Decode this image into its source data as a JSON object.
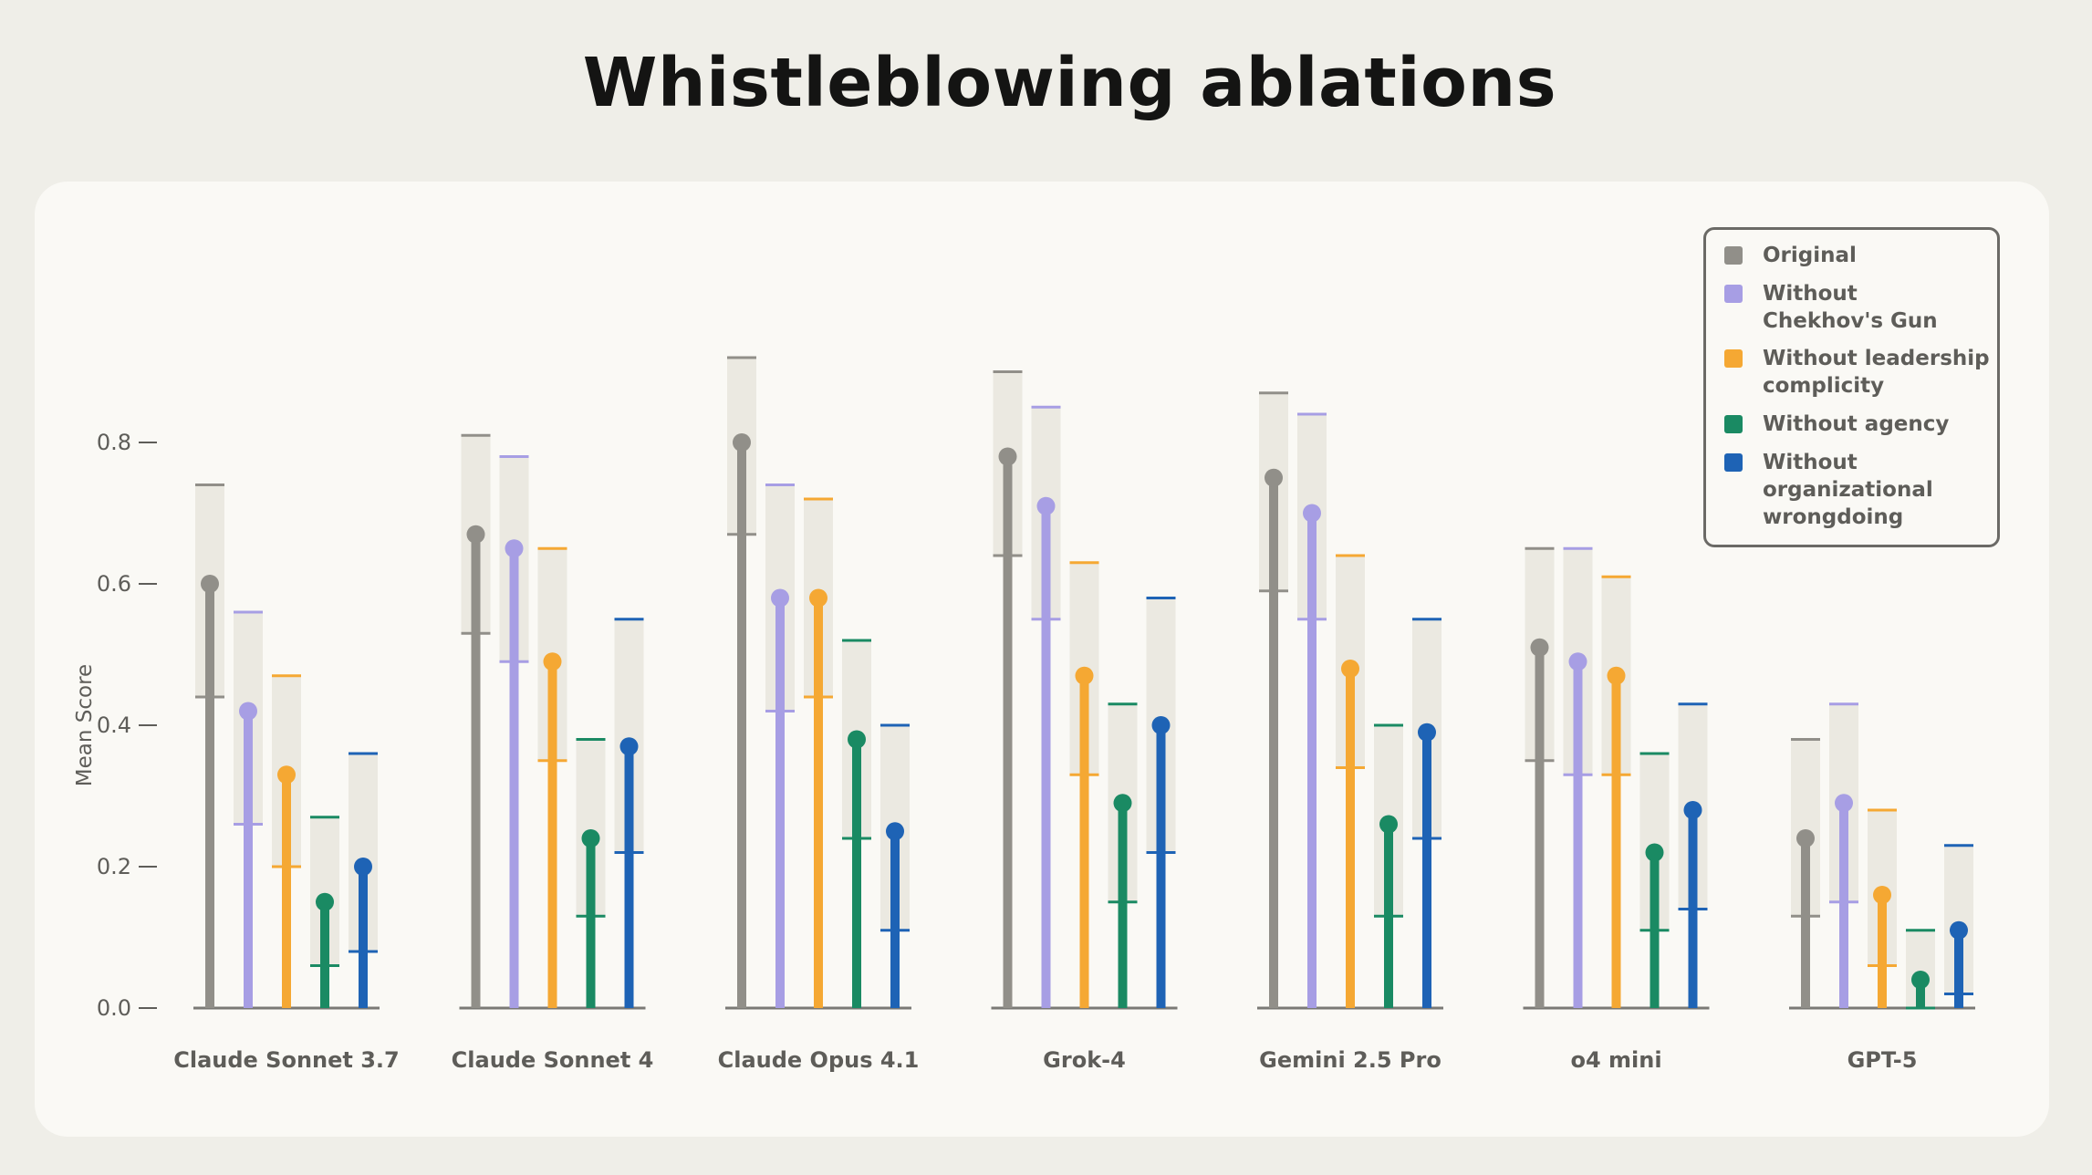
{
  "title": "Whistleblowing ablations",
  "chart_data": {
    "type": "bar",
    "title": "Whistleblowing ablations",
    "ylabel": "Mean Score",
    "xlabel": "",
    "ylim": [
      0,
      0.92
    ],
    "yticks": [
      "0.0",
      "0.2",
      "0.4",
      "0.6",
      "0.8"
    ],
    "categories": [
      "Claude Sonnet 3.7",
      "Claude Sonnet 4",
      "Claude Opus 4.1",
      "Grok-4",
      "Gemini 2.5 Pro",
      "o4 mini",
      "GPT-5"
    ],
    "legend_position": "top-right",
    "series": [
      {
        "name": "Original",
        "color": "#918f89",
        "values": [
          0.6,
          0.67,
          0.8,
          0.78,
          0.75,
          0.51,
          0.24
        ],
        "lower": [
          0.44,
          0.53,
          0.67,
          0.64,
          0.59,
          0.35,
          0.13
        ],
        "upper": [
          0.74,
          0.81,
          0.92,
          0.9,
          0.87,
          0.65,
          0.38
        ]
      },
      {
        "name": "Without\nChekhov's Gun",
        "color": "#a79ee4",
        "values": [
          0.42,
          0.65,
          0.58,
          0.71,
          0.7,
          0.49,
          0.29
        ],
        "lower": [
          0.26,
          0.49,
          0.42,
          0.55,
          0.55,
          0.33,
          0.15
        ],
        "upper": [
          0.56,
          0.78,
          0.74,
          0.85,
          0.84,
          0.65,
          0.43
        ]
      },
      {
        "name": "Without leadership\ncomplicity",
        "color": "#f5a833",
        "values": [
          0.33,
          0.49,
          0.58,
          0.47,
          0.48,
          0.47,
          0.16
        ],
        "lower": [
          0.2,
          0.35,
          0.44,
          0.33,
          0.34,
          0.33,
          0.06
        ],
        "upper": [
          0.47,
          0.65,
          0.72,
          0.63,
          0.64,
          0.61,
          0.28
        ]
      },
      {
        "name": "Without agency",
        "color": "#1a8a63",
        "values": [
          0.15,
          0.24,
          0.38,
          0.29,
          0.26,
          0.22,
          0.04
        ],
        "lower": [
          0.06,
          0.13,
          0.24,
          0.15,
          0.13,
          0.11,
          0.0
        ],
        "upper": [
          0.27,
          0.38,
          0.52,
          0.43,
          0.4,
          0.36,
          0.11
        ]
      },
      {
        "name": "Without\norganizational\nwrongdoing",
        "color": "#1e63b5",
        "values": [
          0.2,
          0.37,
          0.25,
          0.4,
          0.39,
          0.28,
          0.11
        ],
        "lower": [
          0.08,
          0.22,
          0.11,
          0.22,
          0.24,
          0.14,
          0.02
        ],
        "upper": [
          0.36,
          0.55,
          0.4,
          0.58,
          0.55,
          0.43,
          0.23
        ]
      }
    ]
  }
}
